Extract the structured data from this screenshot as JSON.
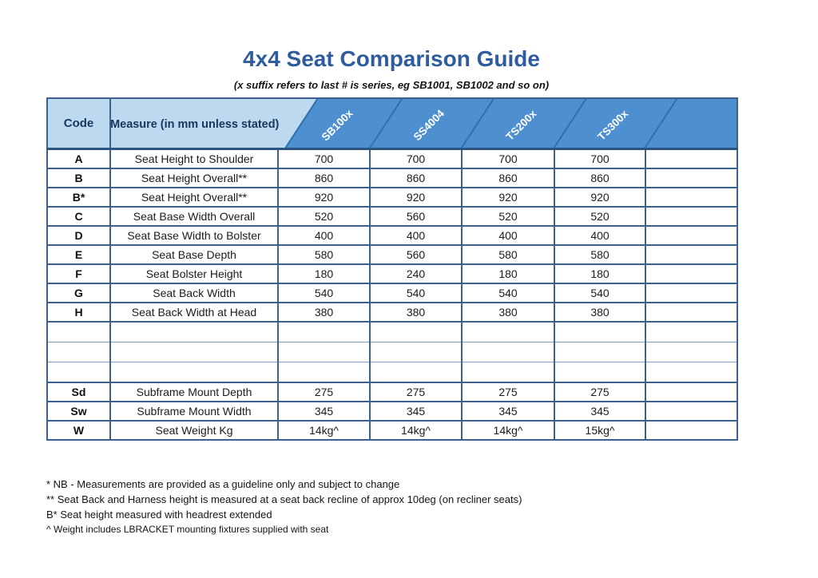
{
  "title": "4x4 Seat Comparison Guide",
  "subtitle": "(x suffix refers to last # is series, eg SB1001, SB1002 and so on)",
  "table": {
    "code_header": "Code",
    "measure_header": "Measure (in mm unless stated)",
    "products": [
      "SB100x",
      "SS4004",
      "TS200x",
      "TS300x"
    ],
    "rows": [
      {
        "code": "A",
        "measure": "Seat Height to Shoulder",
        "values": [
          "700",
          "700",
          "700",
          "700",
          ""
        ]
      },
      {
        "code": "B",
        "measure": "Seat Height Overall**",
        "values": [
          "860",
          "860",
          "860",
          "860",
          ""
        ]
      },
      {
        "code": "B*",
        "measure": "Seat Height Overall**",
        "values": [
          "920",
          "920",
          "920",
          "920",
          ""
        ]
      },
      {
        "code": "C",
        "measure": "Seat Base Width Overall",
        "values": [
          "520",
          "560",
          "520",
          "520",
          ""
        ]
      },
      {
        "code": "D",
        "measure": "Seat Base Width to Bolster",
        "values": [
          "400",
          "400",
          "400",
          "400",
          ""
        ]
      },
      {
        "code": "E",
        "measure": "Seat Base Depth",
        "values": [
          "580",
          "560",
          "580",
          "580",
          ""
        ]
      },
      {
        "code": "F",
        "measure": "Seat Bolster Height",
        "values": [
          "180",
          "240",
          "180",
          "180",
          ""
        ]
      },
      {
        "code": "G",
        "measure": "Seat Back Width",
        "values": [
          "540",
          "540",
          "540",
          "540",
          ""
        ]
      },
      {
        "code": "H",
        "measure": "Seat Back Width at Head",
        "values": [
          "380",
          "380",
          "380",
          "380",
          ""
        ]
      },
      {
        "code": "",
        "measure": "",
        "values": [
          "",
          "",
          "",
          "",
          ""
        ],
        "empty": true
      },
      {
        "code": "",
        "measure": "",
        "values": [
          "",
          "",
          "",
          "",
          ""
        ],
        "empty": true
      },
      {
        "code": "",
        "measure": "",
        "values": [
          "",
          "",
          "",
          "",
          ""
        ],
        "empty": true
      },
      {
        "code": "Sd",
        "measure": "Subframe Mount Depth",
        "values": [
          "275",
          "275",
          "275",
          "275",
          ""
        ]
      },
      {
        "code": "Sw",
        "measure": "Subframe Mount Width",
        "values": [
          "345",
          "345",
          "345",
          "345",
          ""
        ]
      },
      {
        "code": "W",
        "measure": "Seat Weight Kg",
        "values": [
          "14kg^",
          "14kg^",
          "14kg^",
          "15kg^",
          ""
        ]
      }
    ]
  },
  "footnotes": [
    "* NB - Measurements are provided as a guideline only and subject to change",
    "** Seat Back and Harness height is measured at a seat back recline of approx 10deg (on recliner seats)",
    "B* Seat height measured with headrest extended",
    "^ Weight includes LBRACKET mounting fixtures supplied with seat"
  ],
  "colors": {
    "title": "#2e5c9e",
    "header_light_blue": "#bdd9ef",
    "header_dark_blue": "#4e90cf",
    "header_diagonal_line": "#2f6fae",
    "grid_border": "#3b618c",
    "thin_border": "#7c9cc0",
    "header_text": "#17375e",
    "product_label_text": "#ffffff"
  }
}
